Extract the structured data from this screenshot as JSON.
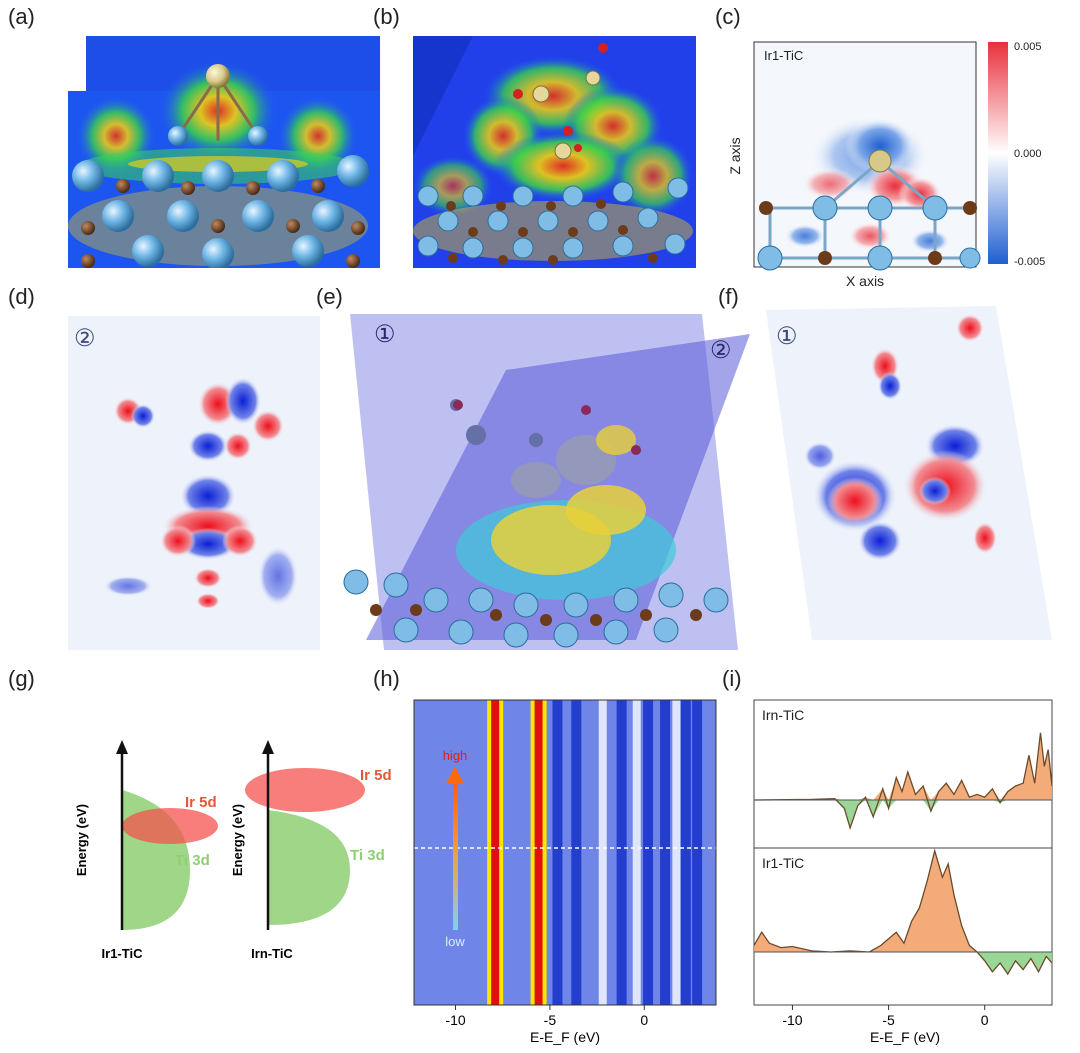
{
  "panel_labels": {
    "a": "(a)",
    "b": "(b)",
    "c": "(c)",
    "d": "(d)",
    "e": "(e)",
    "f": "(f)",
    "g": "(g)",
    "h": "(h)",
    "i": "(i)"
  },
  "panel_c": {
    "inset_title": "Ir1-TiC",
    "xlabel": "X axis",
    "ylabel": "Z axis",
    "colorbar_ticks": [
      "0.005",
      "0.000",
      "-0.005"
    ],
    "colors": {
      "positive": "#e8303c",
      "negative": "#1f5fd1",
      "neutral": "#ffffff"
    }
  },
  "panel_d": {
    "marker": "②"
  },
  "panel_e": {
    "marker_left": "①",
    "marker_right": "②"
  },
  "panel_f": {
    "marker": "①"
  },
  "panel_g": {
    "ylabel": "Energy (eV)",
    "left": {
      "name": "Ir1-TiC",
      "ir_label": "Ir 5d",
      "ti_label": "Ti 3d"
    },
    "right": {
      "name": "Irn-TiC",
      "ir_label": "Ir 5d",
      "ti_label": "Ti 3d"
    },
    "colors": {
      "ir": "#f4534d",
      "ti": "#8fcf73",
      "overlap": "#c0624a"
    }
  },
  "chart_data": [
    {
      "type": "heatmap",
      "panel": "h",
      "xlabel": "E-E_F (eV)",
      "xlim": [
        -12.2,
        3.8
      ],
      "xticks": [
        -10,
        -5,
        0
      ],
      "legend_high": "high",
      "legend_low": "low",
      "bright_bands": [
        -7.9,
        -5.6
      ],
      "dark_bands": [
        -4.6,
        -3.6,
        -1.2,
        0.2,
        1.1,
        2.2,
        2.8
      ],
      "light_bands": [
        -2.2,
        -0.4,
        1.7
      ]
    },
    {
      "type": "area",
      "panel": "i",
      "xlabel": "E-E_F (eV)",
      "xlim": [
        -12,
        3.5
      ],
      "xticks": [
        -10,
        -5,
        0
      ],
      "series": [
        {
          "name": "Irn-TiC",
          "x": [
            -12,
            -9,
            -7.8,
            -7.3,
            -7.0,
            -6.6,
            -6.2,
            -5.8,
            -5.3,
            -5.0,
            -4.6,
            -4.3,
            -4.0,
            -3.6,
            -3.2,
            -2.8,
            -2.4,
            -2.0,
            -1.6,
            -1.2,
            -0.8,
            -0.4,
            0,
            0.4,
            0.8,
            1.2,
            1.6,
            2.0,
            2.3,
            2.6,
            2.9,
            3.1,
            3.3,
            3.5
          ],
          "y": [
            0,
            0.02,
            0.05,
            -0.3,
            -1.0,
            -0.2,
            0.1,
            -0.6,
            0.4,
            -0.3,
            0.8,
            0.3,
            1.0,
            0.2,
            0.5,
            -0.4,
            0.3,
            0.6,
            0.2,
            0.7,
            0.1,
            0.2,
            0.1,
            0.4,
            -0.1,
            0.3,
            0.5,
            0.6,
            1.6,
            0.6,
            2.4,
            1.2,
            1.8,
            0.5
          ]
        },
        {
          "name": "Ir1-TiC",
          "x": [
            -12,
            -11.6,
            -11.2,
            -10.6,
            -10,
            -9,
            -8,
            -7,
            -6,
            -5.4,
            -5.0,
            -4.6,
            -4.2,
            -3.8,
            -3.4,
            -3.0,
            -2.6,
            -2.2,
            -1.9,
            -1.6,
            -1.2,
            -0.8,
            -0.4,
            0,
            0.4,
            0.8,
            1.2,
            1.6,
            2.0,
            2.4,
            2.8,
            3.2,
            3.5
          ],
          "y": [
            0.3,
            0.9,
            0.4,
            0.2,
            0.25,
            0.05,
            0.0,
            0.05,
            0.0,
            0.3,
            0.6,
            0.9,
            0.4,
            1.4,
            2.0,
            3.2,
            4.6,
            3.4,
            4.0,
            2.6,
            1.2,
            0.3,
            0.0,
            -0.4,
            -0.9,
            -0.5,
            -1.0,
            -0.4,
            -0.8,
            -0.3,
            -0.9,
            -0.2,
            -0.5
          ]
        }
      ],
      "colors": {
        "positive": "#f2a36a",
        "negative": "#8fd18b",
        "line": "#6b4a2a"
      }
    }
  ]
}
